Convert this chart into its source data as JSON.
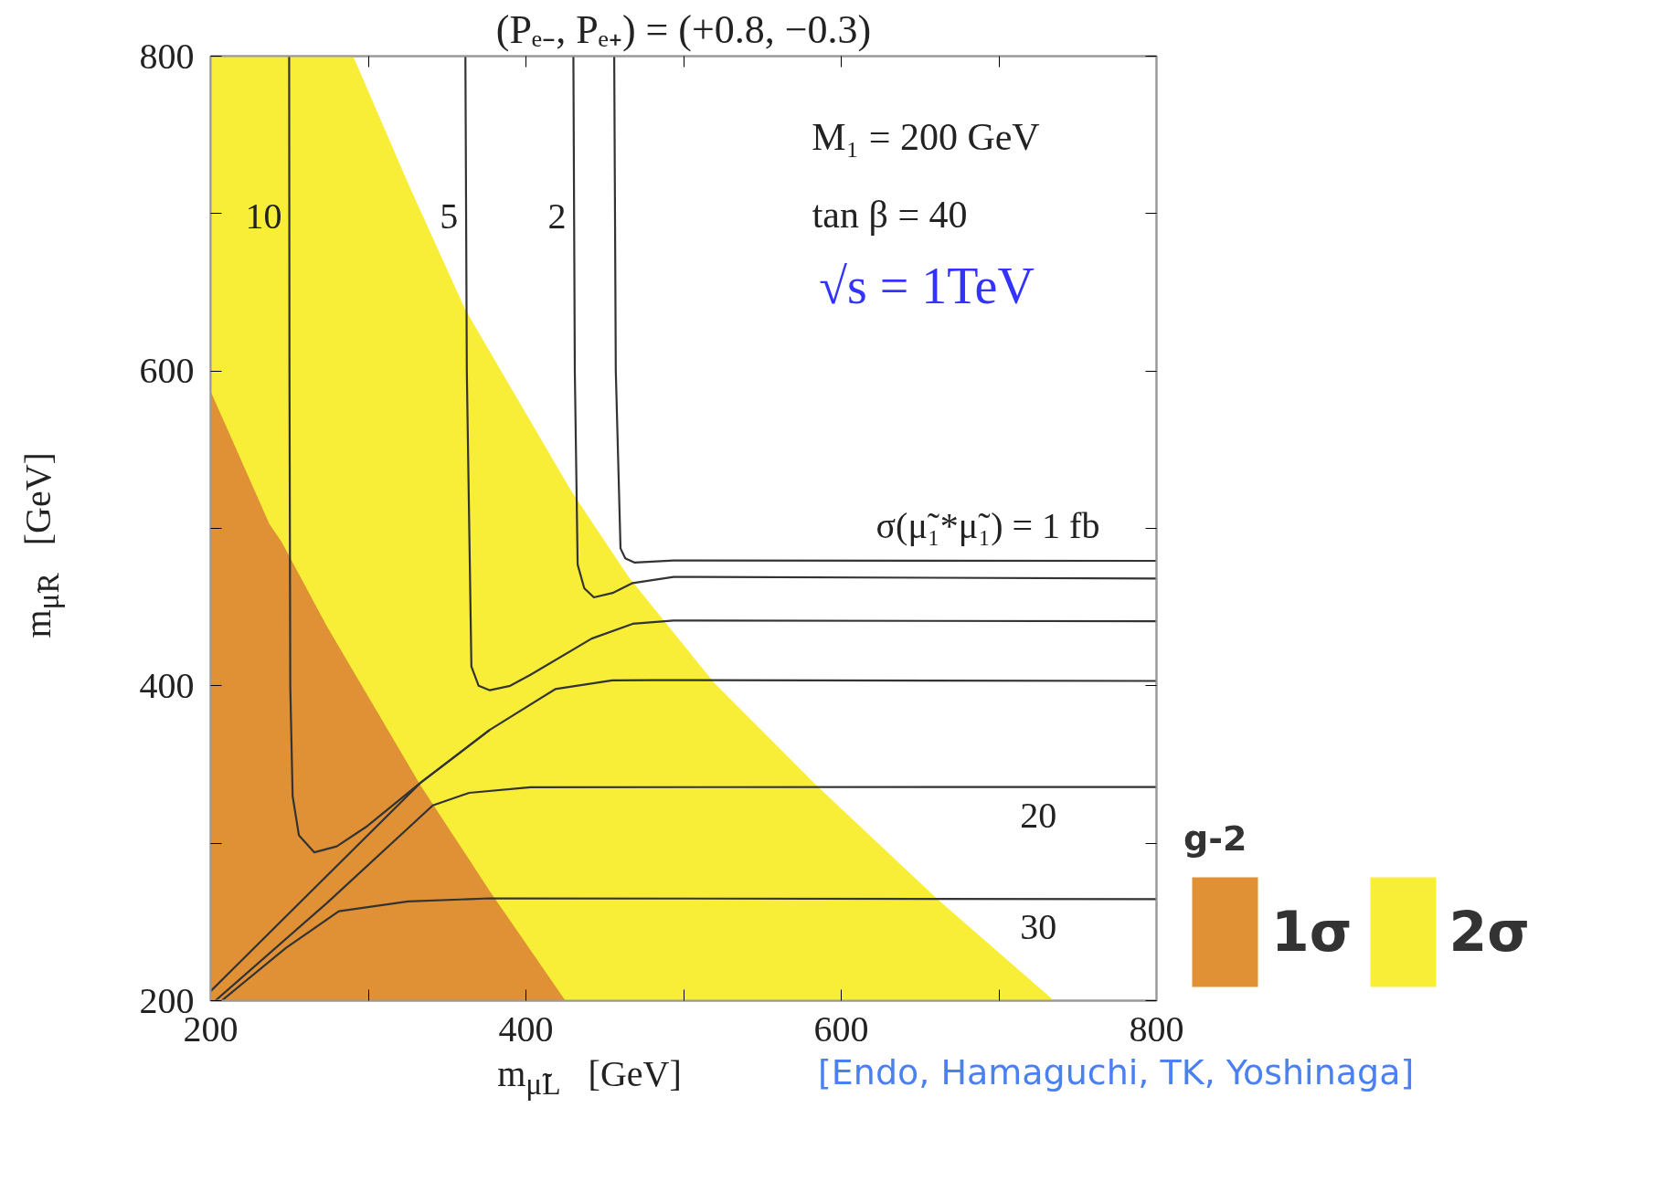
{
  "chart_data": {
    "type": "line",
    "title": "(Pₑ₋, Pₑ₊) = (+0.8, −0.3)",
    "xlabel": "m$_{μ̃L}$   [GeV]",
    "ylabel": "m$_{μ̃R}$   [GeV]",
    "legend_title": "g-2",
    "legend": "bottom right",
    "grid": false,
    "xlim": [
      200,
      800
    ],
    "ylim": [
      200,
      800
    ],
    "xticks": [
      200,
      {
        "value": 300,
        "label": null
      },
      400,
      {
        "value": 500,
        "label": null
      },
      600,
      {
        "value": 700,
        "label": null
      },
      800
    ],
    "yticks": [
      200,
      {
        "value": 300,
        "label": null
      },
      400,
      {
        "value": 500,
        "label": null
      },
      600,
      {
        "value": 700,
        "label": null
      },
      800
    ],
    "series": [
      {
        "type": "area",
        "name": "2σ",
        "color": "#f8ee38",
        "x": [
          200,
          290.4,
          325.3,
          361.6,
          428.9,
          465.1,
          519.4,
          584.1,
          661,
          735
        ],
        "values": [
          800,
          800,
          719,
          638.8,
          523.5,
          469.2,
          401.9,
          337,
          264.5,
          200
        ]
      },
      {
        "type": "area",
        "name": "1σ",
        "color": "#e09136",
        "x": [
          200,
          237.3,
          245,
          273.6,
          333,
          377,
          425
        ],
        "values": [
          587,
          502.8,
          491.4,
          438,
          337,
          269.7,
          200
        ]
      },
      {
        "name": "10",
        "color": "#333333",
        "x": [
          249.8,
          250,
          250.5,
          252,
          256,
          265.8,
          280,
          299.5,
          333,
          377,
          418.6,
          454.7,
          480,
          800
        ],
        "values": [
          800,
          600,
          400,
          330,
          305,
          294.2,
          298,
          311,
          338.3,
          372,
          397.9,
          403.5,
          403.6,
          403.1
        ]
      },
      {
        "color": "#333333",
        "x": [
          200,
          333,
          377
        ],
        "values": [
          206,
          338.3,
          372
        ]
      },
      {
        "name": "20",
        "color": "#333333",
        "x": [
          203,
          273.6,
          340.9,
          364,
          402.9,
          800
        ],
        "values": [
          200,
          261.9,
          324,
          332,
          335.6,
          335.7
        ]
      },
      {
        "name": "30",
        "color": "#333333",
        "x": [
          207,
          247.7,
          281.3,
          325.2,
          377,
          800
        ],
        "values": [
          200,
          233.4,
          256.8,
          263,
          265,
          264.5
        ]
      },
      {
        "name": "5",
        "color": "#333333",
        "x": [
          361.6,
          362.5,
          365.4,
          370,
          377.1,
          390,
          402.9,
          441.7,
          467.7,
          493.6,
          800
        ],
        "values": [
          800,
          600,
          412.3,
          400,
          397.2,
          400,
          407,
          430,
          439.4,
          441.5,
          441
        ]
      },
      {
        "name": "2",
        "color": "#333333",
        "x": [
          430.1,
          431,
          432.8,
          437,
          443.1,
          455,
          467.7,
          493.6,
          800
        ],
        "values": [
          800,
          600,
          477,
          462,
          456.2,
          459,
          465.3,
          469.2,
          468.2
        ]
      },
      {
        "name": "σ(μ̃₁*μ̃₁) = 1 fb",
        "color": "#333333",
        "x": [
          456,
          457,
          460,
          463,
          469,
          493.6,
          800
        ],
        "values": [
          800,
          600,
          487.3,
          481,
          478.3,
          479.6,
          479.4
        ]
      }
    ],
    "annotations": [
      "M₁ = 200 GeV",
      "tan β = 40",
      "√s = 1TeV",
      "[Endo, Hamaguchi, TK, Yoshinaga]"
    ]
  }
}
